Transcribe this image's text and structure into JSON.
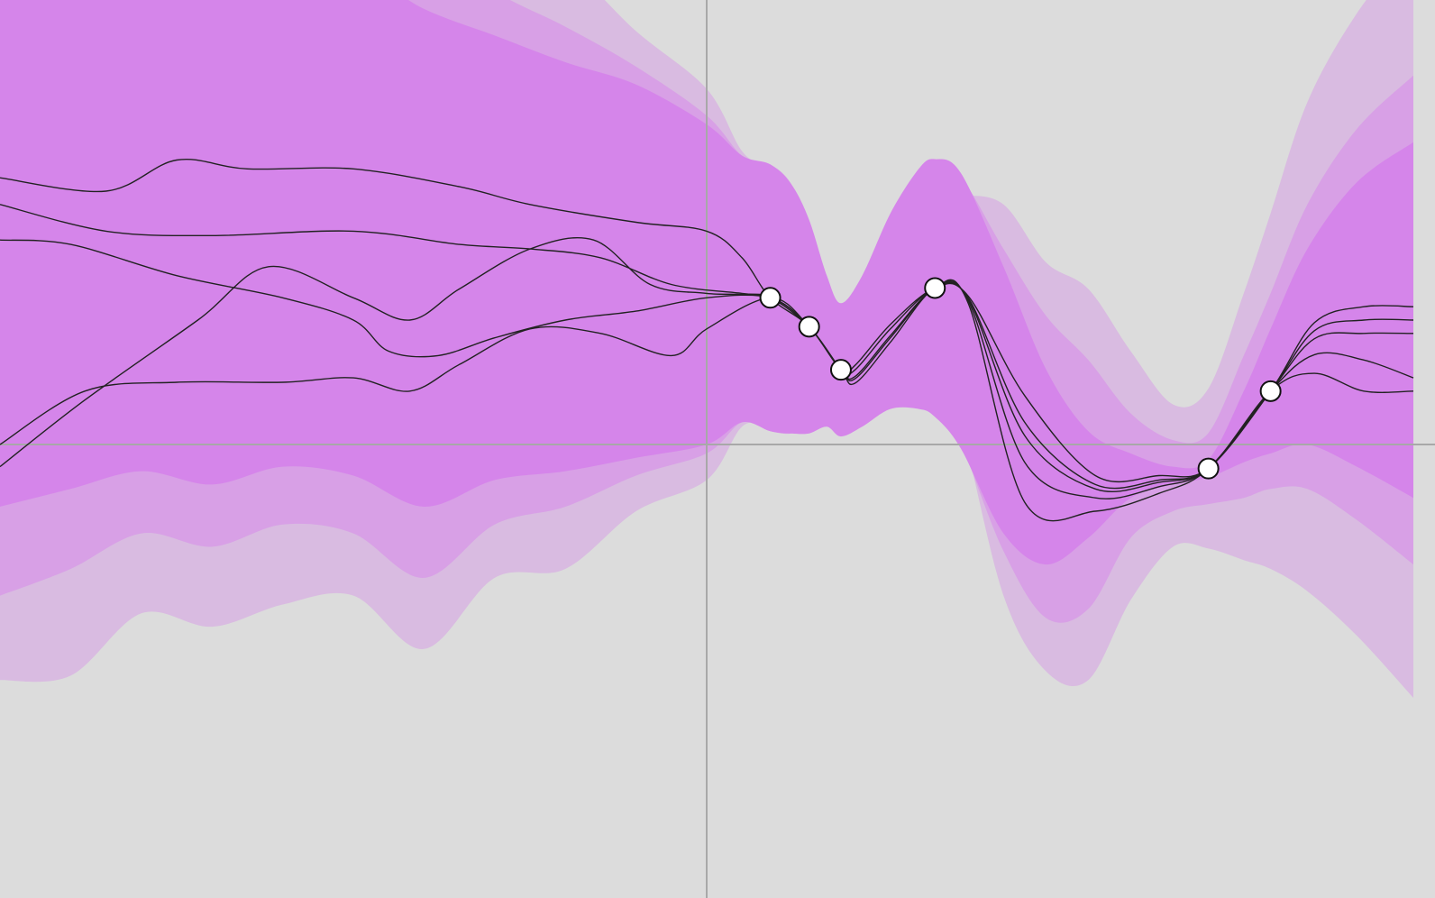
{
  "chart_data": {
    "type": "line",
    "description_free": true,
    "x_range": [
      -1,
      1
    ],
    "y_range": [
      -1,
      1
    ],
    "grid": false,
    "axes_lines": true,
    "colors": {
      "background": "#dcdcdc",
      "band_outer": "#d9bbe1",
      "band_middle": "#d8a0e6",
      "band_inner": "#d585ea",
      "sample_line": "#222222",
      "axis_line": "#a8a8a8",
      "point_fill": "#ffffff",
      "point_stroke": "#111111"
    },
    "observations": [
      {
        "x": 0.09,
        "y": 0.33
      },
      {
        "x": 0.145,
        "y": 0.265
      },
      {
        "x": 0.19,
        "y": 0.168
      },
      {
        "x": 0.323,
        "y": 0.352
      },
      {
        "x": 0.71,
        "y": -0.054
      },
      {
        "x": 0.798,
        "y": 0.12
      }
    ],
    "bands": {
      "x": [
        -1.0,
        -0.9,
        -0.8,
        -0.7,
        -0.6,
        -0.5,
        -0.4,
        -0.3,
        -0.2,
        -0.1,
        0.0,
        0.05,
        0.09,
        0.12,
        0.145,
        0.17,
        0.19,
        0.22,
        0.26,
        0.3,
        0.323,
        0.36,
        0.42,
        0.48,
        0.54,
        0.6,
        0.66,
        0.71,
        0.76,
        0.798,
        0.85,
        0.92,
        1.0
      ],
      "mean": [
        0.5,
        0.5,
        0.5,
        0.47,
        0.5,
        0.5,
        0.42,
        0.42,
        0.4,
        0.39,
        0.36,
        0.35,
        0.33,
        0.305,
        0.265,
        0.21,
        0.168,
        0.21,
        0.3,
        0.35,
        0.352,
        0.3,
        0.1,
        -0.05,
        -0.09,
        -0.07,
        -0.07,
        -0.054,
        0.04,
        0.12,
        0.22,
        0.27,
        0.28
      ],
      "outer": [
        1.03,
        1.02,
        0.88,
        0.88,
        0.86,
        0.84,
        0.88,
        0.72,
        0.68,
        0.54,
        0.44,
        0.31,
        0.28,
        0.2,
        0.1,
        0.05,
        0.04,
        0.06,
        0.12,
        0.18,
        0.2,
        0.26,
        0.44,
        0.46,
        0.44,
        0.28,
        0.16,
        0.18,
        0.3,
        0.4,
        0.55,
        0.7,
        0.85
      ],
      "middle": [
        0.84,
        0.78,
        0.7,
        0.7,
        0.68,
        0.7,
        0.72,
        0.6,
        0.54,
        0.46,
        0.38,
        0.3,
        0.3,
        0.28,
        0.22,
        0.14,
        0.12,
        0.14,
        0.18,
        0.24,
        0.26,
        0.3,
        0.34,
        0.34,
        0.28,
        0.14,
        0.08,
        0.08,
        0.16,
        0.22,
        0.32,
        0.44,
        0.55
      ],
      "inner": [
        0.64,
        0.6,
        0.56,
        0.56,
        0.55,
        0.57,
        0.56,
        0.5,
        0.46,
        0.42,
        0.36,
        0.3,
        0.3,
        0.28,
        0.24,
        0.17,
        0.15,
        0.17,
        0.22,
        0.27,
        0.29,
        0.31,
        0.3,
        0.22,
        0.12,
        0.05,
        0.02,
        0.02,
        0.08,
        0.14,
        0.22,
        0.32,
        0.4
      ]
    },
    "samples": [
      {
        "x": [
          -1.0,
          -0.85,
          -0.75,
          -0.65,
          -0.5,
          -0.35,
          -0.25,
          -0.1,
          0.0,
          0.05,
          0.09
        ],
        "y": [
          0.6,
          0.57,
          0.64,
          0.62,
          0.62,
          0.58,
          0.54,
          0.5,
          0.48,
          0.42,
          0.33
        ]
      },
      {
        "x": [
          -1.0,
          -0.85,
          -0.7,
          -0.5,
          -0.35,
          -0.25,
          -0.15,
          -0.05,
          0.05,
          0.09
        ],
        "y": [
          0.54,
          0.48,
          0.47,
          0.48,
          0.45,
          0.44,
          0.42,
          0.36,
          0.34,
          0.33
        ]
      },
      {
        "x": [
          -1.0,
          -0.9,
          -0.75,
          -0.6,
          -0.5,
          -0.45,
          -0.38,
          -0.3,
          -0.2,
          -0.1,
          0.0,
          0.09
        ],
        "y": [
          0.46,
          0.45,
          0.38,
          0.33,
          0.28,
          0.21,
          0.2,
          0.24,
          0.28,
          0.3,
          0.33,
          0.33
        ]
      },
      {
        "x": [
          -1.0,
          -0.88,
          -0.72,
          -0.62,
          -0.5,
          -0.42,
          -0.35,
          -0.25,
          -0.16,
          -0.08,
          0.0,
          0.09
        ],
        "y": [
          -0.05,
          0.1,
          0.28,
          0.4,
          0.33,
          0.28,
          0.35,
          0.44,
          0.46,
          0.36,
          0.34,
          0.33
        ]
      },
      {
        "x": [
          -1.0,
          -0.88,
          -0.75,
          -0.6,
          -0.5,
          -0.42,
          -0.35,
          -0.25,
          -0.15,
          -0.05,
          0.0,
          0.09
        ],
        "y": [
          0.0,
          0.12,
          0.14,
          0.14,
          0.15,
          0.12,
          0.18,
          0.26,
          0.25,
          0.2,
          0.26,
          0.33
        ]
      }
    ]
  }
}
